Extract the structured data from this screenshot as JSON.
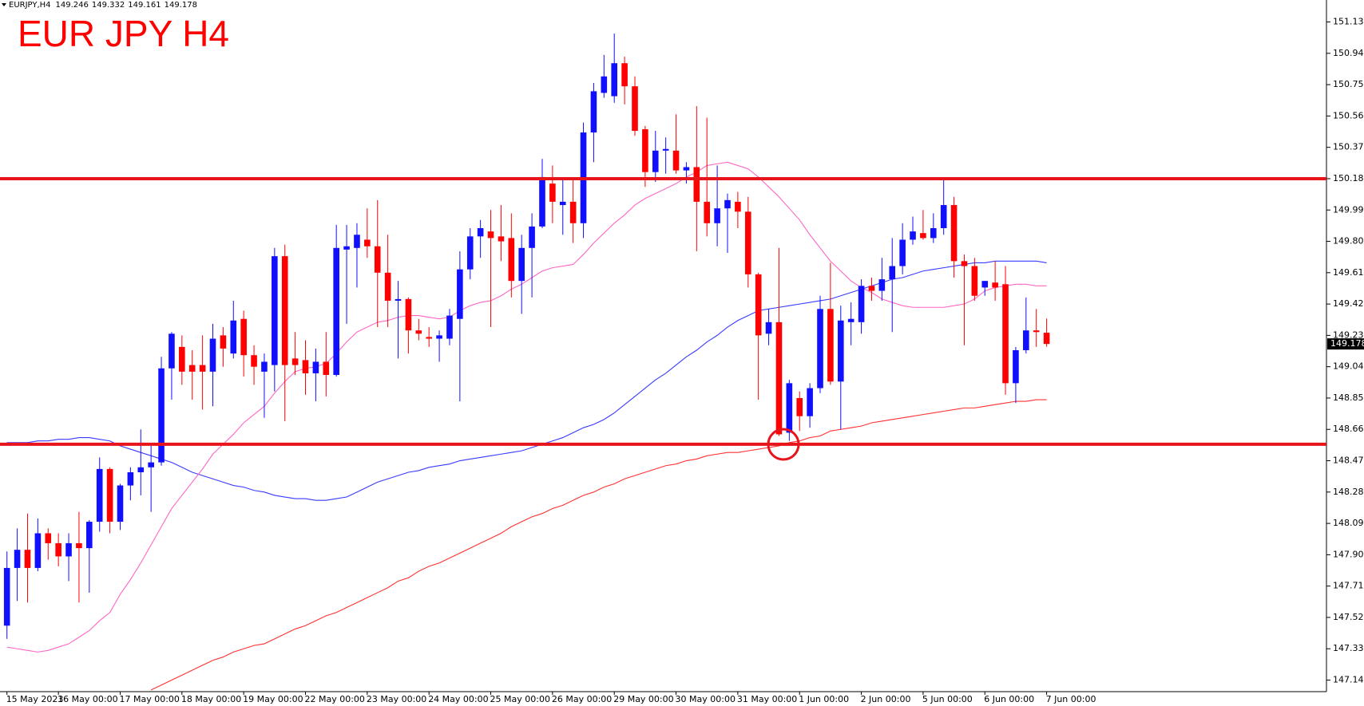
{
  "chart_data": {
    "type": "candlestick",
    "title": "EUR JPY H4",
    "symbol": "EURJPY,H4",
    "categories": [
      "15 May 2023",
      null,
      null,
      null,
      null,
      "16 May 00:00",
      null,
      null,
      null,
      null,
      null,
      "17 May 00:00",
      null,
      null,
      null,
      null,
      null,
      "18 May 00:00",
      null,
      null,
      null,
      null,
      null,
      "19 May 00:00",
      null,
      null,
      null,
      null,
      null,
      "22 May 00:00",
      null,
      null,
      null,
      null,
      null,
      "23 May 00:00",
      null,
      null,
      null,
      null,
      null,
      "24 May 00:00",
      null,
      null,
      null,
      null,
      null,
      "25 May 00:00",
      null,
      null,
      null,
      null,
      null,
      "26 May 00:00",
      null,
      null,
      null,
      null,
      null,
      "29 May 00:00",
      null,
      null,
      null,
      null,
      null,
      "30 May 00:00",
      null,
      null,
      null,
      null,
      null,
      "31 May 00:00",
      null,
      null,
      null,
      null,
      null,
      "1 Jun 00:00",
      null,
      null,
      null,
      null,
      null,
      "2 Jun 00:00",
      null,
      null,
      null,
      null,
      null,
      "5 Jun 00:00",
      null,
      null,
      null,
      null,
      null,
      "6 Jun 00:00",
      null,
      null,
      null,
      null,
      null,
      "7 Jun 00:00"
    ],
    "open": [
      147.47,
      147.82,
      147.93,
      147.82,
      148.03,
      147.97,
      147.89,
      147.97,
      147.94,
      148.1,
      148.42,
      148.1,
      148.32,
      148.4,
      148.43,
      148.46,
      149.03,
      149.16,
      149.05,
      149.05,
      149.01,
      149.23,
      149.12,
      149.33,
      149.11,
      149.01,
      149.05,
      149.71,
      149.09,
      149.08,
      149.0,
      149.07,
      148.99,
      149.75,
      149.76,
      149.81,
      149.77,
      149.61,
      149.44,
      149.45,
      149.26,
      149.22,
      149.21,
      149.21,
      149.33,
      149.63,
      149.83,
      149.86,
      149.83,
      149.82,
      149.56,
      149.76,
      149.89,
      150.15,
      150.02,
      150.04,
      149.91,
      150.46,
      150.7,
      150.68,
      150.88,
      150.74,
      150.48,
      150.22,
      150.35,
      150.35,
      150.23,
      150.25,
      150.04,
      149.91,
      150.0,
      150.04,
      149.98,
      149.6,
      149.24,
      149.31,
      148.64,
      148.85,
      148.74,
      148.91,
      149.39,
      148.95,
      149.31,
      149.31,
      149.53,
      149.5,
      149.57,
      149.65,
      149.81,
      149.85,
      149.82,
      149.88,
      150.02,
      149.68,
      149.65,
      149.52,
      149.55,
      149.54,
      148.94,
      149.14,
      149.26,
      149.246
    ],
    "high": [
      147.92,
      148.06,
      148.15,
      148.12,
      148.06,
      148.03,
      148.03,
      148.16,
      148.11,
      148.49,
      148.43,
      148.33,
      148.43,
      148.66,
      148.56,
      149.1,
      149.25,
      149.23,
      149.14,
      149.23,
      149.3,
      149.28,
      149.44,
      149.38,
      149.17,
      149.12,
      149.76,
      149.78,
      149.25,
      149.2,
      149.15,
      149.25,
      149.9,
      149.9,
      149.91,
      150.0,
      150.05,
      149.84,
      149.56,
      149.46,
      149.33,
      149.28,
      149.26,
      149.39,
      149.74,
      149.88,
      149.93,
      149.99,
      150.02,
      149.97,
      149.84,
      149.97,
      150.3,
      150.26,
      150.18,
      150.18,
      150.52,
      150.76,
      150.93,
      151.06,
      150.92,
      150.8,
      150.5,
      150.47,
      150.43,
      150.57,
      150.28,
      150.62,
      150.55,
      150.26,
      150.09,
      150.1,
      150.07,
      149.61,
      149.39,
      149.76,
      148.96,
      148.89,
      148.94,
      149.47,
      149.67,
      149.41,
      149.43,
      149.57,
      149.58,
      149.7,
      149.82,
      149.91,
      149.95,
      149.99,
      149.97,
      150.18,
      150.07,
      149.72,
      149.7,
      149.56,
      149.68,
      149.65,
      149.16,
      149.46,
      149.39,
      149.332
    ],
    "low": [
      147.39,
      147.62,
      147.61,
      147.8,
      147.87,
      147.83,
      147.74,
      147.61,
      147.67,
      148.04,
      148.03,
      148.05,
      148.23,
      148.26,
      148.16,
      148.44,
      148.84,
      148.93,
      148.84,
      148.78,
      148.8,
      149.04,
      149.09,
      148.98,
      148.93,
      148.73,
      148.89,
      148.71,
      148.99,
      148.87,
      148.83,
      148.86,
      148.98,
      149.3,
      149.52,
      149.7,
      149.28,
      149.28,
      149.09,
      149.12,
      149.2,
      149.16,
      149.07,
      149.17,
      148.83,
      149.57,
      149.7,
      149.28,
      149.68,
      149.46,
      149.36,
      149.46,
      149.88,
      149.91,
      149.84,
      149.79,
      149.82,
      150.28,
      150.67,
      150.64,
      150.63,
      150.44,
      150.13,
      150.16,
      150.21,
      150.21,
      150.15,
      149.74,
      149.83,
      149.77,
      149.73,
      149.88,
      149.52,
      148.84,
      149.17,
      148.62,
      148.59,
      148.65,
      148.67,
      148.88,
      148.93,
      148.66,
      149.17,
      149.24,
      149.44,
      149.44,
      149.25,
      149.6,
      149.78,
      149.81,
      149.79,
      149.84,
      149.58,
      149.17,
      149.44,
      149.47,
      149.44,
      148.87,
      148.82,
      149.12,
      149.16,
      149.161
    ],
    "close": [
      147.82,
      147.93,
      147.82,
      148.03,
      147.97,
      147.89,
      147.97,
      147.94,
      148.1,
      148.42,
      148.1,
      148.32,
      148.4,
      148.43,
      148.46,
      149.03,
      149.24,
      149.01,
      149.01,
      149.01,
      149.21,
      149.15,
      149.32,
      149.11,
      149.04,
      149.07,
      149.71,
      149.05,
      149.05,
      149.0,
      149.07,
      148.99,
      149.76,
      149.77,
      149.84,
      149.77,
      149.61,
      149.44,
      149.45,
      149.26,
      149.24,
      149.21,
      149.23,
      149.35,
      149.63,
      149.83,
      149.88,
      149.82,
      149.8,
      149.56,
      149.76,
      149.89,
      150.19,
      150.04,
      150.04,
      149.91,
      150.46,
      150.71,
      150.8,
      150.88,
      150.74,
      150.47,
      150.22,
      150.35,
      150.36,
      150.23,
      150.25,
      150.04,
      149.91,
      150.0,
      150.05,
      149.98,
      149.6,
      149.23,
      149.31,
      148.63,
      148.94,
      148.74,
      148.91,
      149.39,
      148.95,
      149.32,
      149.33,
      149.53,
      149.5,
      149.57,
      149.65,
      149.81,
      149.86,
      149.82,
      149.88,
      150.02,
      149.68,
      149.65,
      149.47,
      149.56,
      149.52,
      148.94,
      149.14,
      149.26,
      149.25,
      149.178
    ],
    "up_color": "#1010ff",
    "down_color": "#ff0000",
    "series": [
      {
        "color": "#3a3aff",
        "values": [
          148.58,
          148.58,
          148.58,
          148.59,
          148.59,
          148.6,
          148.6,
          148.61,
          148.61,
          148.6,
          148.59,
          148.56,
          148.54,
          148.52,
          148.5,
          148.48,
          148.46,
          148.43,
          148.4,
          148.38,
          148.36,
          148.34,
          148.32,
          148.31,
          148.29,
          148.28,
          148.26,
          148.25,
          148.24,
          148.24,
          148.23,
          148.23,
          148.24,
          148.25,
          148.28,
          148.31,
          148.34,
          148.36,
          148.38,
          148.4,
          148.41,
          148.43,
          148.44,
          148.45,
          148.47,
          148.48,
          148.49,
          148.5,
          148.51,
          148.52,
          148.53,
          148.55,
          148.57,
          148.59,
          148.61,
          148.64,
          148.67,
          148.69,
          148.72,
          148.76,
          148.81,
          148.86,
          148.91,
          148.96,
          149.0,
          149.05,
          149.1,
          149.14,
          149.19,
          149.23,
          149.28,
          149.32,
          149.35,
          149.38,
          149.39,
          149.4,
          149.41,
          149.42,
          149.43,
          149.44,
          149.45,
          149.47,
          149.49,
          149.51,
          149.53,
          149.55,
          149.57,
          149.58,
          149.6,
          149.62,
          149.63,
          149.64,
          149.65,
          149.66,
          149.67,
          149.67,
          149.68,
          149.68,
          149.68,
          149.68,
          149.68,
          149.67
        ]
      },
      {
        "color": "#ff66c4",
        "values": [
          147.34,
          147.33,
          147.32,
          147.31,
          147.32,
          147.34,
          147.36,
          147.4,
          147.44,
          147.5,
          147.55,
          147.66,
          147.75,
          147.85,
          147.96,
          148.07,
          148.18,
          148.26,
          148.34,
          148.42,
          148.51,
          148.57,
          148.63,
          148.7,
          148.75,
          148.8,
          148.88,
          148.95,
          149.01,
          149.03,
          149.04,
          149.06,
          149.12,
          149.19,
          149.25,
          149.28,
          149.31,
          149.32,
          149.34,
          149.35,
          149.35,
          149.34,
          149.33,
          149.34,
          149.38,
          149.41,
          149.43,
          149.44,
          149.47,
          149.51,
          149.54,
          149.58,
          149.62,
          149.64,
          149.65,
          149.66,
          149.72,
          149.79,
          149.85,
          149.91,
          149.96,
          150.02,
          150.06,
          150.09,
          150.12,
          150.15,
          150.19,
          150.22,
          150.26,
          150.27,
          150.28,
          150.26,
          150.24,
          150.19,
          150.13,
          150.07,
          150.0,
          149.93,
          149.84,
          149.76,
          149.68,
          149.62,
          149.56,
          149.52,
          149.49,
          149.45,
          149.43,
          149.41,
          149.4,
          149.4,
          149.4,
          149.4,
          149.41,
          149.42,
          149.45,
          149.5,
          149.52,
          149.53,
          149.54,
          149.54,
          149.53,
          149.53
        ]
      },
      {
        "color": "#ff3030",
        "values": [
          null,
          null,
          null,
          null,
          null,
          null,
          null,
          null,
          null,
          null,
          null,
          null,
          null,
          null,
          147.08,
          147.11,
          147.14,
          147.17,
          147.2,
          147.23,
          147.26,
          147.28,
          147.31,
          147.33,
          147.35,
          147.36,
          147.39,
          147.42,
          147.45,
          147.47,
          147.5,
          147.53,
          147.55,
          147.58,
          147.61,
          147.64,
          147.67,
          147.7,
          147.74,
          147.76,
          147.8,
          147.83,
          147.85,
          147.88,
          147.91,
          147.94,
          147.97,
          148.0,
          148.03,
          148.07,
          148.1,
          148.13,
          148.15,
          148.18,
          148.2,
          148.23,
          148.26,
          148.28,
          148.31,
          148.33,
          148.36,
          148.38,
          148.4,
          148.42,
          148.44,
          148.45,
          148.47,
          148.48,
          148.5,
          148.51,
          148.52,
          148.52,
          148.53,
          148.54,
          148.55,
          148.56,
          148.58,
          148.59,
          148.61,
          148.62,
          148.65,
          148.66,
          148.67,
          148.68,
          148.7,
          148.71,
          148.72,
          148.73,
          148.74,
          148.75,
          148.76,
          148.77,
          148.78,
          148.79,
          148.79,
          148.8,
          148.81,
          148.82,
          148.83,
          148.83,
          148.84,
          148.84
        ]
      }
    ],
    "levels": [
      150.18,
      148.57
    ],
    "level_color": "#e8141c",
    "ylim": [
      147.07,
      151.21
    ],
    "yticks": [
      {
        "value": 147.14,
        "label": "147.140"
      },
      {
        "value": 147.33,
        "label": "147.330"
      },
      {
        "value": 147.52,
        "label": "147.520"
      },
      {
        "value": 147.71,
        "label": "147.710"
      },
      {
        "value": 147.9,
        "label": "147.900"
      },
      {
        "value": 148.09,
        "label": "148.090"
      },
      {
        "value": 148.28,
        "label": "148.280"
      },
      {
        "value": 148.47,
        "label": "148.470"
      },
      {
        "value": 148.66,
        "label": "148.660"
      },
      {
        "value": 148.85,
        "label": "148.850"
      },
      {
        "value": 149.04,
        "label": "149.040"
      },
      {
        "value": 149.23,
        "label": "149.230"
      },
      {
        "value": 149.42,
        "label": "149.420"
      },
      {
        "value": 149.61,
        "label": "149.610"
      },
      {
        "value": 149.8,
        "label": "149.800"
      },
      {
        "value": 149.99,
        "label": "149.990"
      },
      {
        "value": 150.18,
        "label": "150.180"
      },
      {
        "value": 150.37,
        "label": "150.370"
      },
      {
        "value": 150.56,
        "label": "150.560"
      },
      {
        "value": 150.75,
        "label": "150.750"
      },
      {
        "value": 150.94,
        "label": "150.940"
      },
      {
        "value": 151.13,
        "label": "151.130"
      }
    ]
  }
}
